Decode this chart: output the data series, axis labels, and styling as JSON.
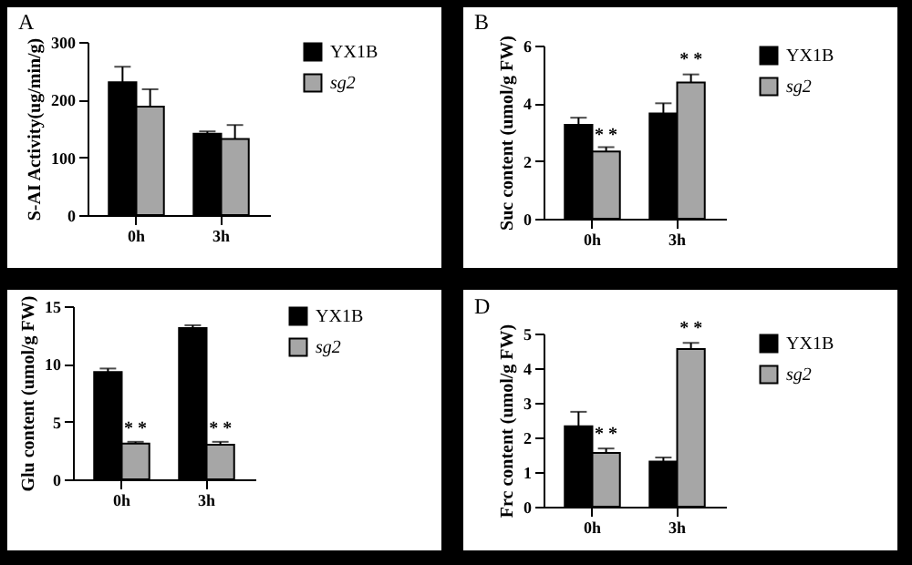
{
  "chart_data": [
    {
      "type": "bar",
      "title": "A",
      "categories": [
        "0h",
        "3h"
      ],
      "ylabel": "S-AI Activity(ug/min/g)",
      "ylim": [
        0,
        300
      ],
      "yticks": [
        0,
        100,
        200,
        300
      ],
      "legend": "right",
      "series": [
        {
          "name": "YX1B",
          "color": "#000000",
          "values": [
            230,
            141
          ],
          "errors": [
            [
              230,
              257
            ],
            [
              141,
              145
            ]
          ]
        },
        {
          "name": "sg2",
          "color": "#a6a6a6",
          "values": [
            188,
            132
          ],
          "errors": [
            [
              188,
              218
            ],
            [
              132,
              156
            ]
          ]
        }
      ]
    },
    {
      "type": "bar",
      "title": "B",
      "categories": [
        "0h",
        "3h"
      ],
      "ylabel": "Suc content (umol/g FW)",
      "ylim": [
        0,
        6
      ],
      "yticks": [
        0,
        2,
        4,
        6
      ],
      "legend": "right",
      "series": [
        {
          "name": "YX1B",
          "color": "#000000",
          "values": [
            3.25,
            3.65
          ],
          "errors": [
            [
              3.25,
              3.5
            ],
            [
              3.65,
              4.0
            ]
          ]
        },
        {
          "name": "sg2",
          "color": "#a6a6a6",
          "values": [
            2.33,
            4.72
          ],
          "errors": [
            [
              2.33,
              2.48
            ],
            [
              4.72,
              5.0
            ]
          ]
        }
      ],
      "annotations": [
        {
          "text": "* *",
          "x": "0h",
          "y": 2.6
        },
        {
          "text": "* *",
          "x": "3h",
          "y": 5.2
        }
      ]
    },
    {
      "type": "bar",
      "categories": [
        "0h",
        "3h"
      ],
      "ylabel": "Glu content (umol/g FW)",
      "ylim": [
        0,
        15
      ],
      "yticks": [
        0,
        5,
        10,
        15
      ],
      "legend": "right",
      "series": [
        {
          "name": "YX1B",
          "color": "#000000",
          "values": [
            9.3,
            13.1
          ],
          "errors": [
            [
              9.3,
              9.6
            ],
            [
              13.1,
              13.35
            ]
          ]
        },
        {
          "name": "sg2",
          "color": "#a6a6a6",
          "values": [
            3.1,
            3.0
          ],
          "errors": [
            [
              3.1,
              3.25
            ],
            [
              3.0,
              3.25
            ]
          ]
        }
      ],
      "annotations": [
        {
          "text": "* *",
          "x": "0h",
          "y": 3.6
        },
        {
          "text": "* *",
          "x": "3h",
          "y": 3.6
        }
      ]
    },
    {
      "type": "bar",
      "title": "D",
      "categories": [
        "0h",
        "3h"
      ],
      "ylabel": "Frc content (umol/g FW)",
      "ylim": [
        0,
        5
      ],
      "yticks": [
        0,
        1,
        2,
        3,
        4,
        5
      ],
      "legend": "right",
      "series": [
        {
          "name": "YX1B",
          "color": "#000000",
          "values": [
            2.32,
            1.3
          ],
          "errors": [
            [
              2.32,
              2.74
            ],
            [
              1.3,
              1.42
            ]
          ]
        },
        {
          "name": "sg2",
          "color": "#a6a6a6",
          "values": [
            1.55,
            4.55
          ],
          "errors": [
            [
              1.55,
              1.68
            ],
            [
              4.55,
              4.73
            ]
          ]
        }
      ],
      "annotations": [
        {
          "text": "* *",
          "x": "0h",
          "y": 1.85
        },
        {
          "text": "* *",
          "x": "3h",
          "y": 4.9
        }
      ]
    }
  ]
}
